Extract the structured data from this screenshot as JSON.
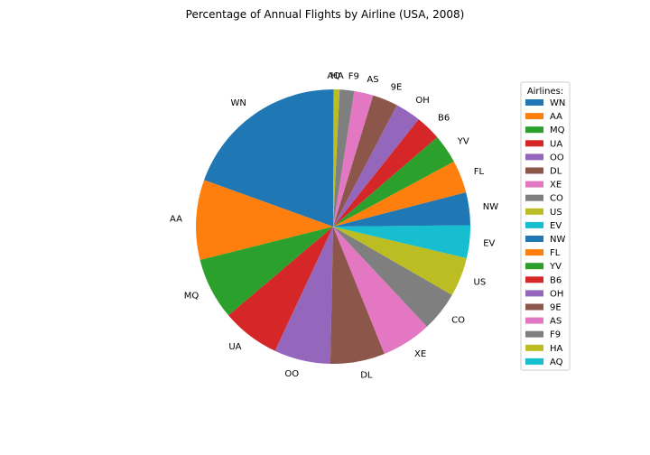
{
  "chart_data": {
    "type": "pie",
    "title": "Percentage of Annual Flights by Airline (USA, 2008)",
    "legend_title": "Airlines:",
    "legend_placement": "right",
    "start_angle_deg": 90,
    "direction": "counterclockwise",
    "slices": [
      {
        "label": "WN",
        "value": 18.2,
        "color": "#1f77b4"
      },
      {
        "label": "AA",
        "value": 8.8,
        "color": "#ff7f0e"
      },
      {
        "label": "MQ",
        "value": 6.8,
        "color": "#2ca02c"
      },
      {
        "label": "UA",
        "value": 6.4,
        "color": "#d62728"
      },
      {
        "label": "OO",
        "value": 6.2,
        "color": "#9467bd"
      },
      {
        "label": "DL",
        "value": 6.0,
        "color": "#8c564b"
      },
      {
        "label": "XE",
        "value": 5.5,
        "color": "#e377c2"
      },
      {
        "label": "CO",
        "value": 4.4,
        "color": "#7f7f7f"
      },
      {
        "label": "US",
        "value": 4.3,
        "color": "#bcbd22"
      },
      {
        "label": "EV",
        "value": 3.6,
        "color": "#17becf"
      },
      {
        "label": "NW",
        "value": 3.6,
        "color": "#1f77b4"
      },
      {
        "label": "FL",
        "value": 3.6,
        "color": "#ff7f0e"
      },
      {
        "label": "YV",
        "value": 3.2,
        "color": "#2ca02c"
      },
      {
        "label": "B6",
        "value": 2.8,
        "color": "#d62728"
      },
      {
        "label": "OH",
        "value": 2.8,
        "color": "#9467bd"
      },
      {
        "label": "9E",
        "value": 2.8,
        "color": "#8c564b"
      },
      {
        "label": "AS",
        "value": 2.1,
        "color": "#e377c2"
      },
      {
        "label": "F9",
        "value": 1.6,
        "color": "#7f7f7f"
      },
      {
        "label": "HA",
        "value": 0.6,
        "color": "#bcbd22"
      },
      {
        "label": "AQ",
        "value": 0.1,
        "color": "#17becf"
      }
    ]
  }
}
